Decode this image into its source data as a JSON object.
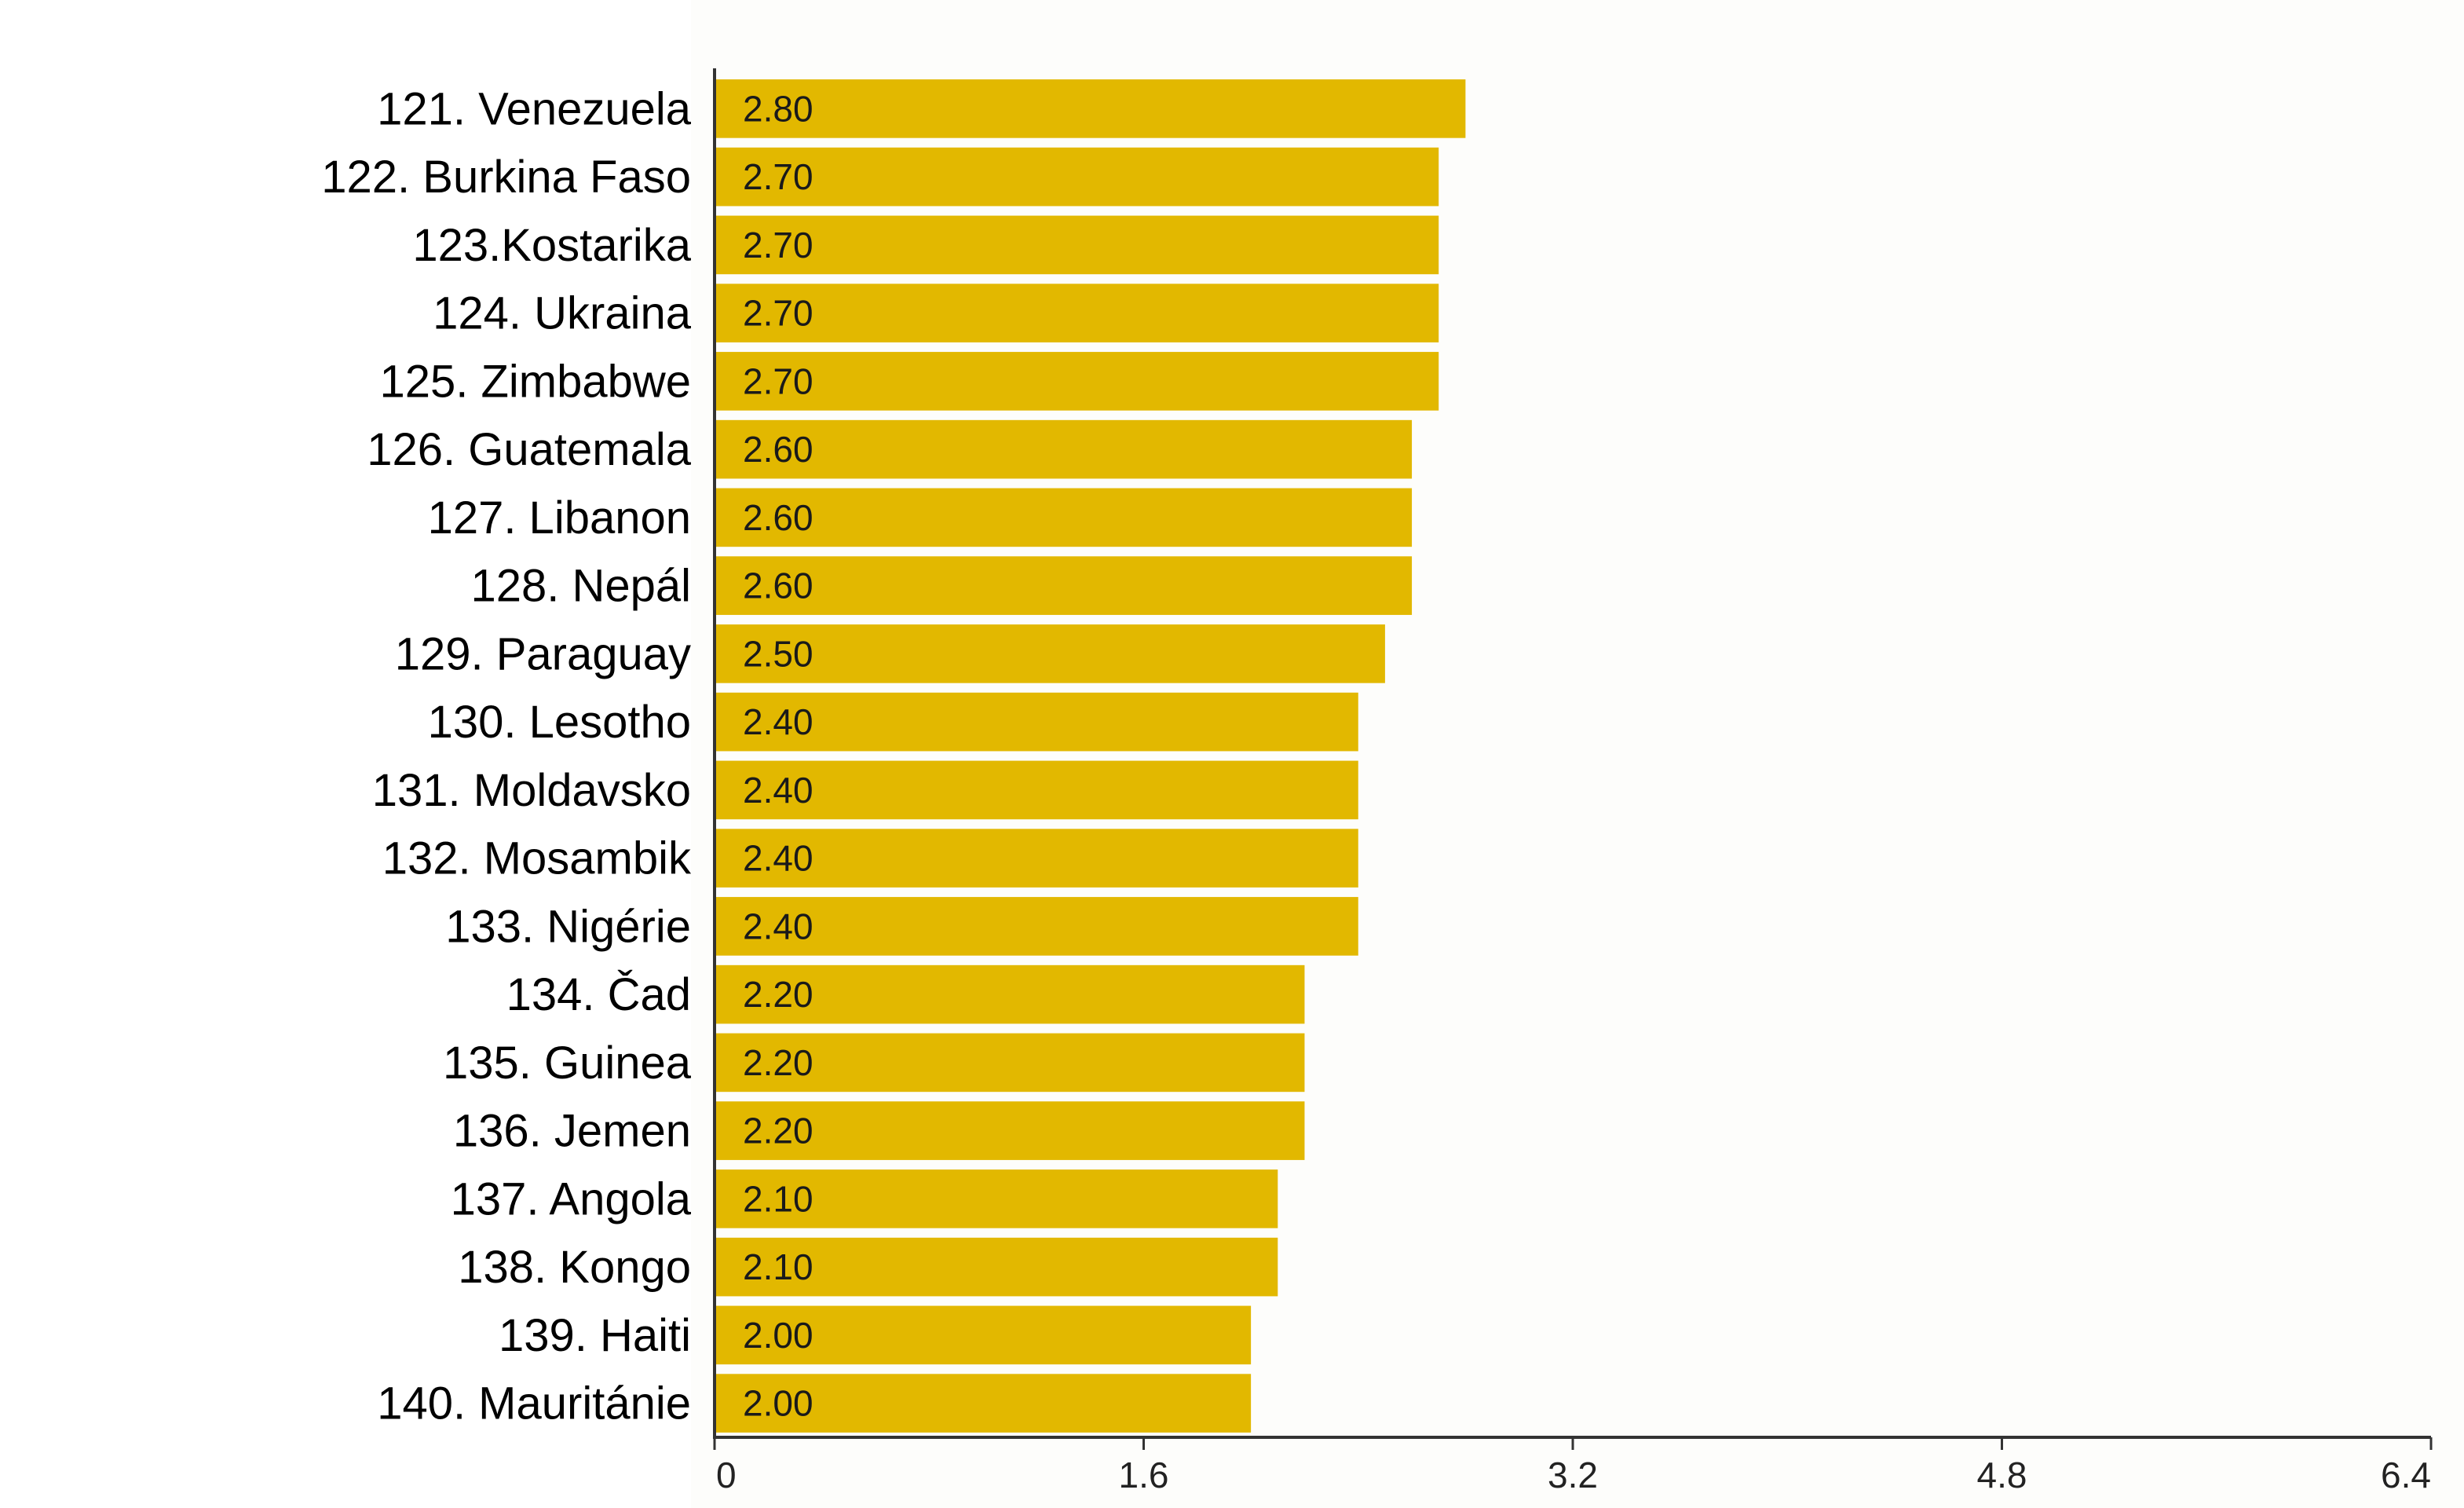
{
  "chart_data": {
    "type": "bar",
    "orientation": "horizontal",
    "title": "",
    "xlabel": "",
    "ylabel": "",
    "categories": [
      "121. Venezuela",
      "122. Burkina Faso",
      "123.Kostarika",
      "124. Ukraina",
      "125. Zimbabwe",
      "126. Guatemala",
      "127. Libanon",
      "128. Nepál",
      "129. Paraguay",
      "130. Lesotho",
      "131. Moldavsko",
      "132. Mosambik",
      "133. Nigérie",
      "134. Čad",
      "135. Guinea",
      "136. Jemen",
      "137. Angola",
      "138. Kongo",
      "139. Haiti",
      "140. Mauritánie"
    ],
    "values": [
      2.8,
      2.7,
      2.7,
      2.7,
      2.7,
      2.6,
      2.6,
      2.6,
      2.5,
      2.4,
      2.4,
      2.4,
      2.4,
      2.2,
      2.2,
      2.2,
      2.1,
      2.1,
      2.0,
      2.0
    ],
    "value_labels": [
      "2.80",
      "2.70",
      "2.70",
      "2.70",
      "2.70",
      "2.60",
      "2.60",
      "2.60",
      "2.50",
      "2.40",
      "2.40",
      "2.40",
      "2.40",
      "2.20",
      "2.20",
      "2.20",
      "2.10",
      "2.10",
      "2.00",
      "2.00"
    ],
    "xlim": [
      0,
      6.4
    ],
    "xticks": [
      0,
      1.6,
      3.2,
      4.8,
      6.4
    ],
    "xtick_labels": [
      "0",
      "1.6",
      "3.2",
      "4.8",
      "6.4"
    ],
    "grid": false,
    "legend": "none",
    "bar_color": "#e2b800"
  }
}
